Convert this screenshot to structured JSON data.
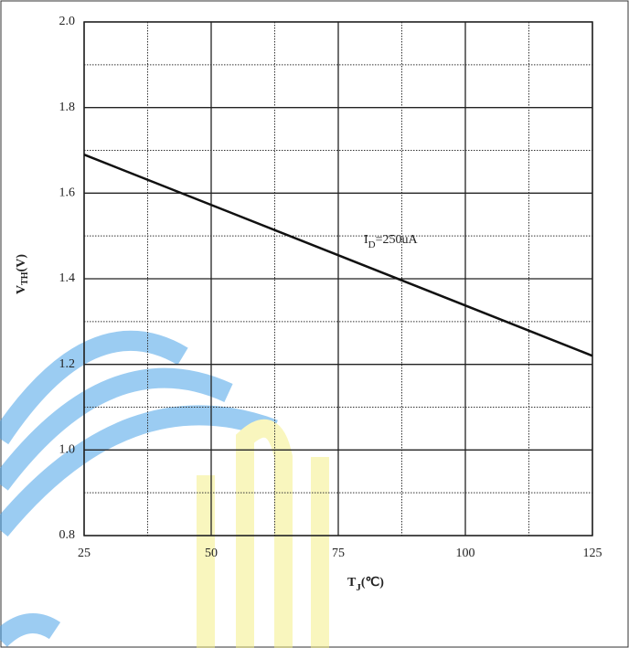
{
  "chart_data": {
    "type": "line",
    "x": [
      25,
      125
    ],
    "series": [
      {
        "color": "#111111",
        "values": [
          1.69,
          1.22
        ]
      }
    ],
    "xlim": [
      25,
      125
    ],
    "xticks": [
      25,
      50,
      75,
      100,
      125
    ],
    "x_minor_grid": [
      37.5,
      62.5,
      87.5,
      112.5
    ],
    "ylim": [
      0.8,
      2.0
    ],
    "yticks": [
      {
        "value": 0.8,
        "label": "0.8"
      },
      {
        "value": 1.0,
        "label": "1.0"
      },
      {
        "value": 1.2,
        "label": "1.2"
      },
      {
        "value": 1.4,
        "label": "1.4"
      },
      {
        "value": 1.6,
        "label": "1.6"
      },
      {
        "value": 1.8,
        "label": "1.8"
      },
      {
        "value": 2.0,
        "label": "2.0"
      }
    ],
    "y_minor_grid": [
      0.9,
      1.1,
      1.3,
      1.5,
      1.7,
      1.9
    ],
    "grid": true,
    "xlabel": [
      "T",
      "J",
      "(℃)"
    ],
    "ylabel": [
      "V",
      "TH",
      "(V)"
    ],
    "annotation": [
      "I",
      "D",
      "=250uA"
    ]
  }
}
